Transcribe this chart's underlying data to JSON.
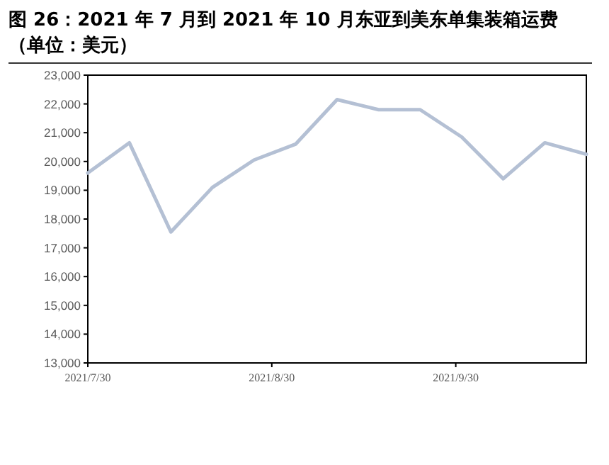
{
  "chart_data": {
    "type": "line",
    "title": "图 26：2021 年 7 月到 2021 年 10 月东亚到美东单集装箱运费（单位：美元）",
    "x": [
      "2021-07-30",
      "2021-08-06",
      "2021-08-13",
      "2021-08-20",
      "2021-08-27",
      "2021-09-03",
      "2021-09-10",
      "2021-09-17",
      "2021-09-24",
      "2021-10-01",
      "2021-10-08",
      "2021-10-15",
      "2021-10-22"
    ],
    "series": [
      {
        "color": "#b4c0d4",
        "values": [
          19600,
          20650,
          17550,
          19100,
          20050,
          20600,
          22150,
          21800,
          21800,
          20850,
          19400,
          20650,
          20250
        ]
      }
    ],
    "xlim": [
      "2021-07-30",
      "2021-10-22"
    ],
    "xticks": [
      {
        "value": "2021-07-30",
        "label": "2021/7/30"
      },
      {
        "value": "2021-08-30",
        "label": "2021/8/30"
      },
      {
        "value": "2021-09-30",
        "label": "2021/9/30"
      }
    ],
    "ylim": [
      13000,
      23000
    ],
    "yticks": [
      {
        "value": 13000,
        "label": "13,000"
      },
      {
        "value": 14000,
        "label": "14,000"
      },
      {
        "value": 15000,
        "label": "15,000"
      },
      {
        "value": 16000,
        "label": "16,000"
      },
      {
        "value": 17000,
        "label": "17,000"
      },
      {
        "value": 18000,
        "label": "18,000"
      },
      {
        "value": 19000,
        "label": "19,000"
      },
      {
        "value": 20000,
        "label": "20,000"
      },
      {
        "value": 21000,
        "label": "21,000"
      },
      {
        "value": 22000,
        "label": "22,000"
      },
      {
        "value": 23000,
        "label": "23,000"
      }
    ],
    "grid": false,
    "marker": "none",
    "line_style": "solid"
  }
}
